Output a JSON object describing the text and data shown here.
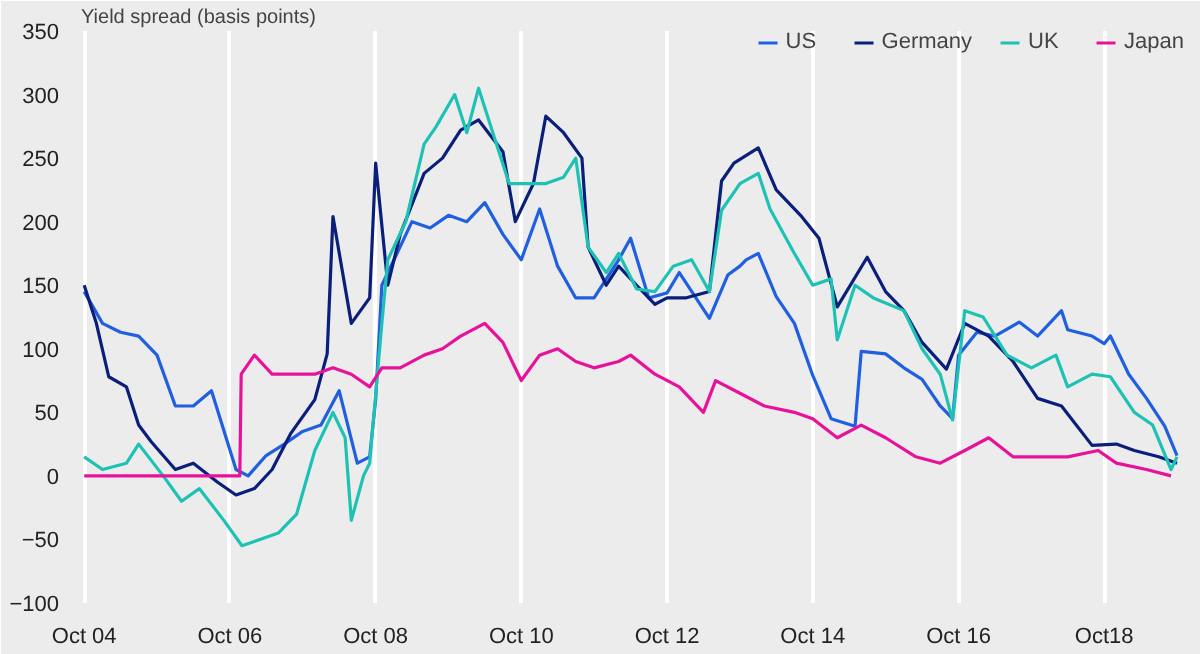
{
  "chart_data": {
    "type": "line",
    "ylabel": "Yield spread (basis points)",
    "xlim": [
      "2004-09-15",
      "2019-11-10"
    ],
    "ylim": [
      -100,
      350
    ],
    "yticks": [
      -100,
      -50,
      0,
      50,
      100,
      150,
      200,
      250,
      300,
      350
    ],
    "xticks": [
      {
        "value": "2004-10",
        "label": "Oct 04"
      },
      {
        "value": "2006-10",
        "label": "Oct 06"
      },
      {
        "value": "2008-10",
        "label": "Oct 08"
      },
      {
        "value": "2010-10",
        "label": "Oct 10"
      },
      {
        "value": "2012-10",
        "label": "Oct 12"
      },
      {
        "value": "2014-10",
        "label": "Oct 14"
      },
      {
        "value": "2016-10",
        "label": "Oct 16"
      },
      {
        "value": "2018-10",
        "label": "Oct18"
      }
    ],
    "grid": "x",
    "legend": "top right",
    "series": [
      {
        "name": "US",
        "color": "#1f5fe0",
        "x": [
          "2004-10",
          "2005-01",
          "2005-04",
          "2005-07",
          "2005-10",
          "2006-01",
          "2006-04",
          "2006-07",
          "2006-11",
          "2007-01",
          "2007-04",
          "2007-07",
          "2007-10",
          "2008-01",
          "2008-04",
          "2008-07",
          "2008-09",
          "2008-10",
          "2008-11",
          "2009-01",
          "2009-04",
          "2009-07",
          "2009-10",
          "2010-01",
          "2010-04",
          "2010-07",
          "2010-10",
          "2011-01",
          "2011-04",
          "2011-07",
          "2011-10",
          "2012-02",
          "2012-04",
          "2012-07",
          "2012-10",
          "2012-12",
          "2013-05",
          "2013-08",
          "2013-10",
          "2013-11",
          "2014-01",
          "2014-04",
          "2014-07",
          "2014-10",
          "2015-01",
          "2015-05",
          "2015-06",
          "2015-10",
          "2016-01",
          "2016-04",
          "2016-07",
          "2016-09",
          "2016-10",
          "2017-01",
          "2017-04",
          "2017-08",
          "2017-11",
          "2018-03",
          "2018-04",
          "2018-08",
          "2018-10",
          "2018-11",
          "2019-02",
          "2019-05",
          "2019-08",
          "2019-10"
        ],
        "values": [
          145,
          120,
          113,
          110,
          95,
          55,
          55,
          67,
          5,
          0,
          16,
          25,
          35,
          40,
          67,
          10,
          15,
          60,
          150,
          170,
          200,
          195,
          205,
          200,
          215,
          190,
          170,
          210,
          165,
          140,
          140,
          170,
          187,
          140,
          144,
          160,
          124,
          158,
          165,
          170,
          175,
          141,
          120,
          79,
          45,
          39,
          98,
          96,
          85,
          76,
          55,
          45,
          95,
          113,
          110,
          121,
          110,
          130,
          115,
          110,
          104,
          110,
          80,
          61,
          39,
          16
        ]
      },
      {
        "name": "Germany",
        "color": "#0a1f7a",
        "x": [
          "2004-10",
          "2004-12",
          "2005-02",
          "2005-05",
          "2005-07",
          "2005-09",
          "2006-01",
          "2006-04",
          "2006-08",
          "2006-11",
          "2007-02",
          "2007-05",
          "2007-08",
          "2007-12",
          "2008-02",
          "2008-03",
          "2008-06",
          "2008-09",
          "2008-10",
          "2008-12",
          "2009-02",
          "2009-06",
          "2009-09",
          "2009-12",
          "2010-03",
          "2010-07",
          "2010-09",
          "2010-12",
          "2011-02",
          "2011-05",
          "2011-08",
          "2011-09",
          "2011-12",
          "2012-02",
          "2012-05",
          "2012-08",
          "2012-10",
          "2013-01",
          "2013-05",
          "2013-07",
          "2013-09",
          "2014-01",
          "2014-04",
          "2014-08",
          "2014-11",
          "2015-02",
          "2015-07",
          "2015-10",
          "2016-01",
          "2016-04",
          "2016-08",
          "2016-11",
          "2017-03",
          "2017-07",
          "2017-11",
          "2018-03",
          "2018-08",
          "2018-12",
          "2019-03",
          "2019-07",
          "2019-10"
        ],
        "values": [
          150,
          120,
          78,
          70,
          40,
          27,
          5,
          10,
          -5,
          -15,
          -10,
          5,
          33,
          60,
          96,
          204,
          120,
          140,
          246,
          150,
          190,
          238,
          250,
          272,
          280,
          255,
          200,
          230,
          283,
          270,
          250,
          180,
          150,
          165,
          150,
          135,
          140,
          140,
          145,
          232,
          246,
          258,
          225,
          205,
          187,
          133,
          172,
          145,
          130,
          105,
          84,
          120,
          110,
          90,
          61,
          55,
          24,
          25,
          20,
          15,
          10
        ]
      },
      {
        "name": "UK",
        "color": "#1ec2b4",
        "x": [
          "2004-10",
          "2005-01",
          "2005-05",
          "2005-07",
          "2005-11",
          "2006-02",
          "2006-05",
          "2006-09",
          "2006-12",
          "2007-03",
          "2007-06",
          "2007-09",
          "2007-12",
          "2008-03",
          "2008-05",
          "2008-06",
          "2008-08",
          "2008-09",
          "2008-11",
          "2008-12",
          "2009-03",
          "2009-06",
          "2009-08",
          "2009-11",
          "2010-01",
          "2010-03",
          "2010-05",
          "2010-08",
          "2010-11",
          "2011-02",
          "2011-05",
          "2011-07",
          "2011-09",
          "2011-12",
          "2012-02",
          "2012-05",
          "2012-08",
          "2012-11",
          "2013-02",
          "2013-05",
          "2013-07",
          "2013-10",
          "2014-01",
          "2014-03",
          "2014-07",
          "2014-10",
          "2015-01",
          "2015-02",
          "2015-05",
          "2015-08",
          "2016-01",
          "2016-04",
          "2016-07",
          "2016-09",
          "2016-11",
          "2017-02",
          "2017-06",
          "2017-10",
          "2018-02",
          "2018-04",
          "2018-08",
          "2018-11",
          "2019-03",
          "2019-06",
          "2019-09",
          "2019-10"
        ],
        "values": [
          15,
          5,
          10,
          25,
          0,
          -20,
          -10,
          -35,
          -55,
          -50,
          -45,
          -30,
          20,
          50,
          30,
          -35,
          0,
          10,
          120,
          170,
          200,
          261,
          275,
          300,
          270,
          305,
          275,
          230,
          230,
          230,
          235,
          250,
          180,
          160,
          175,
          147,
          145,
          165,
          170,
          145,
          209,
          230,
          238,
          210,
          175,
          150,
          155,
          107,
          150,
          140,
          130,
          100,
          80,
          44,
          130,
          125,
          95,
          85,
          95,
          70,
          80,
          78,
          50,
          40,
          5,
          15
        ]
      },
      {
        "name": "Japan",
        "color": "#e8129a",
        "x": [
          "2004-10",
          "2006-11-20",
          "2006-11-27",
          "2007-02",
          "2007-05",
          "2007-08",
          "2007-12",
          "2008-03",
          "2008-06",
          "2008-09",
          "2008-11",
          "2009-02",
          "2009-06",
          "2009-09",
          "2009-12",
          "2010-04",
          "2010-07",
          "2010-10",
          "2011-01",
          "2011-04",
          "2011-07",
          "2011-10",
          "2012-02",
          "2012-04",
          "2012-08",
          "2012-12",
          "2013-04",
          "2013-06",
          "2013-10",
          "2014-02",
          "2014-07",
          "2014-10",
          "2015-02",
          "2015-06",
          "2015-10",
          "2016-03",
          "2016-07",
          "2016-11",
          "2017-03",
          "2017-07",
          "2017-12",
          "2018-04",
          "2018-09",
          "2018-12",
          "2019-05",
          "2019-09"
        ],
        "values": [
          0,
          0,
          80,
          95,
          80,
          80,
          80,
          85,
          80,
          70,
          85,
          85,
          95,
          100,
          110,
          120,
          105,
          75,
          95,
          100,
          90,
          85,
          90,
          95,
          80,
          70,
          50,
          75,
          65,
          55,
          50,
          45,
          30,
          40,
          30,
          15,
          10,
          20,
          30,
          15,
          15,
          15,
          20,
          10,
          5,
          0
        ]
      }
    ]
  }
}
